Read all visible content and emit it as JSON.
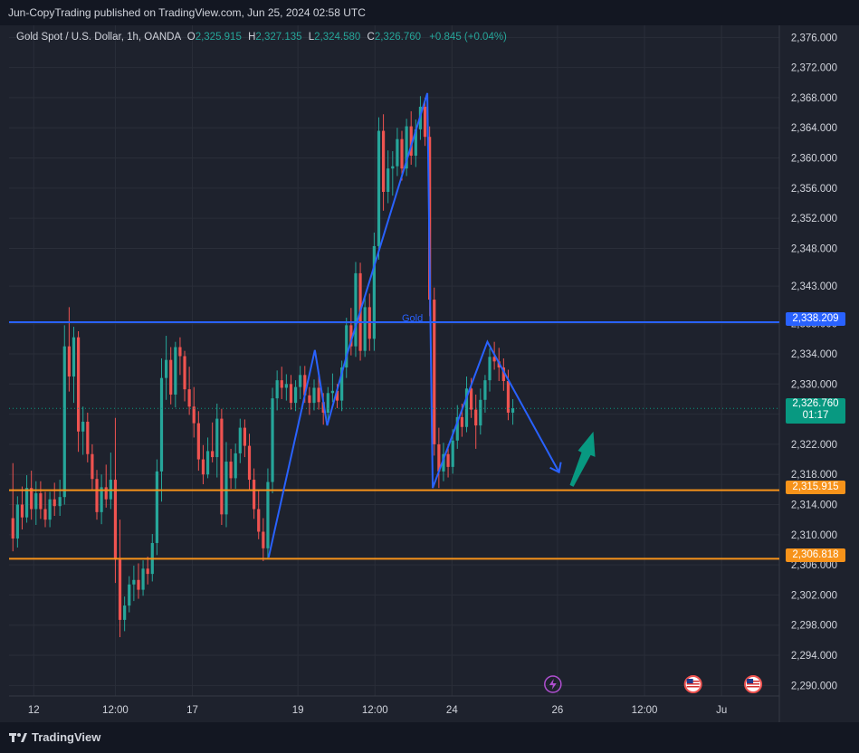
{
  "header": {
    "published_line": "Jun-CopyTrading published on TradingView.com, Jun 25, 2024 02:58 UTC"
  },
  "legend": {
    "symbol": "Gold Spot / U.S. Dollar, 1h, OANDA",
    "o_label": "O",
    "o_value": "2,325.915",
    "h_label": "H",
    "h_value": "2,327.135",
    "l_label": "L",
    "l_value": "2,324.580",
    "c_label": "C",
    "c_value": "2,326.760",
    "change": "+0.845 (+0.04%)"
  },
  "price_tags": {
    "blue_line": "2,338.209",
    "current_price": "2,326.760",
    "countdown": "01:17",
    "orange_upper": "2,315.915",
    "orange_lower": "2,306.818"
  },
  "drawing_label": "Gold",
  "footer": {
    "brand": "TradingView"
  },
  "colors": {
    "background": "#1e222d",
    "up_candle": "#26a69a",
    "down_candle": "#ef5350",
    "blue_line": "#2962ff",
    "orange_line": "#f7931a",
    "projection": "#2962ff",
    "green_arrow": "#089981"
  },
  "icons": [
    "lightning-event-icon",
    "us-flag-event-icon",
    "us-flag-event-icon",
    "tradingview-logo-icon"
  ],
  "chart_data": {
    "type": "candlestick",
    "instrument": "Gold Spot / U.S. Dollar",
    "timeframe": "1h",
    "y_axis_ticks": [
      "2,376.000",
      "2,372.000",
      "2,368.000",
      "2,364.000",
      "2,360.000",
      "2,356.000",
      "2,352.000",
      "2,348.000",
      "2,343.000",
      "2,338.000",
      "2,334.000",
      "2,330.000",
      "2,326.000",
      "2,322.000",
      "2,318.000",
      "2,314.000",
      "2,310.000",
      "2,306.000",
      "2,302.000",
      "2,298.000",
      "2,294.000",
      "2,290.000"
    ],
    "y_tick_values": [
      2376,
      2372,
      2368,
      2364,
      2360,
      2356,
      2352,
      2348,
      2343,
      2338,
      2334,
      2330,
      2326,
      2322,
      2318,
      2314,
      2310,
      2306,
      2302,
      2298,
      2294,
      2290
    ],
    "x_axis_ticks": [
      "12",
      "12:00",
      "17",
      "19",
      "12:00",
      "24",
      "26",
      "12:00",
      "Ju"
    ],
    "x_tick_positions": [
      0.032,
      0.138,
      0.238,
      0.375,
      0.475,
      0.575,
      0.712,
      0.825,
      0.925
    ],
    "ylim": [
      2288.6,
      2377.6
    ],
    "horizontal_levels": [
      {
        "price": 2338.209,
        "color": "#2962ff"
      },
      {
        "price": 2315.915,
        "color": "#f7931a"
      },
      {
        "price": 2306.818,
        "color": "#f7931a"
      }
    ],
    "current_price": 2326.76,
    "path_points": [
      {
        "t": 0.337,
        "price": 2307.0
      },
      {
        "t": 0.397,
        "price": 2334.5
      },
      {
        "t": 0.413,
        "price": 2324.5
      },
      {
        "t": 0.439,
        "price": 2334.0
      },
      {
        "t": 0.543,
        "price": 2368.6
      },
      {
        "t": 0.55,
        "price": 2316.2
      },
      {
        "t": 0.621,
        "price": 2335.6
      },
      {
        "t": 0.714,
        "price": 2318.3
      }
    ],
    "candles": [
      {
        "t": 0.005,
        "o": 2312.2,
        "h": 2319.5,
        "l": 2307.8,
        "c": 2309.5
      },
      {
        "t": 0.011,
        "o": 2309.5,
        "h": 2315.1,
        "l": 2308.3,
        "c": 2314.0
      },
      {
        "t": 0.017,
        "o": 2314.0,
        "h": 2316.4,
        "l": 2310.7,
        "c": 2312.3
      },
      {
        "t": 0.023,
        "o": 2312.3,
        "h": 2317.9,
        "l": 2311.6,
        "c": 2316.2
      },
      {
        "t": 0.029,
        "o": 2316.2,
        "h": 2318.5,
        "l": 2312.0,
        "c": 2313.4
      },
      {
        "t": 0.035,
        "o": 2313.4,
        "h": 2317.1,
        "l": 2311.3,
        "c": 2315.5
      },
      {
        "t": 0.041,
        "o": 2315.5,
        "h": 2317.1,
        "l": 2312.1,
        "c": 2313.4
      },
      {
        "t": 0.047,
        "o": 2313.4,
        "h": 2315.7,
        "l": 2311.0,
        "c": 2312.0
      },
      {
        "t": 0.053,
        "o": 2312.0,
        "h": 2315.7,
        "l": 2311.0,
        "c": 2314.7
      },
      {
        "t": 0.059,
        "o": 2314.7,
        "h": 2316.9,
        "l": 2312.5,
        "c": 2313.8
      },
      {
        "t": 0.066,
        "o": 2313.8,
        "h": 2317.3,
        "l": 2312.5,
        "c": 2315.0
      },
      {
        "t": 0.072,
        "o": 2315.0,
        "h": 2337.8,
        "l": 2314.0,
        "c": 2335.0
      },
      {
        "t": 0.078,
        "o": 2335.0,
        "h": 2340.2,
        "l": 2329.0,
        "c": 2331.0
      },
      {
        "t": 0.084,
        "o": 2331.0,
        "h": 2337.6,
        "l": 2327.5,
        "c": 2336.2
      },
      {
        "t": 0.09,
        "o": 2336.2,
        "h": 2337.0,
        "l": 2321.0,
        "c": 2323.7
      },
      {
        "t": 0.096,
        "o": 2323.7,
        "h": 2327.0,
        "l": 2320.6,
        "c": 2325.0
      },
      {
        "t": 0.102,
        "o": 2325.0,
        "h": 2326.2,
        "l": 2319.6,
        "c": 2320.7
      },
      {
        "t": 0.108,
        "o": 2320.7,
        "h": 2322.0,
        "l": 2316.0,
        "c": 2317.4
      },
      {
        "t": 0.114,
        "o": 2317.4,
        "h": 2318.6,
        "l": 2312.0,
        "c": 2313.0
      },
      {
        "t": 0.12,
        "o": 2313.0,
        "h": 2318.0,
        "l": 2311.4,
        "c": 2316.3
      },
      {
        "t": 0.126,
        "o": 2316.3,
        "h": 2319.3,
        "l": 2313.6,
        "c": 2314.7
      },
      {
        "t": 0.132,
        "o": 2314.7,
        "h": 2320.9,
        "l": 2313.4,
        "c": 2317.3
      },
      {
        "t": 0.138,
        "o": 2317.3,
        "h": 2325.5,
        "l": 2303.6,
        "c": 2306.7
      },
      {
        "t": 0.144,
        "o": 2306.7,
        "h": 2312.0,
        "l": 2296.4,
        "c": 2298.7
      },
      {
        "t": 0.15,
        "o": 2298.7,
        "h": 2301.8,
        "l": 2297.2,
        "c": 2300.6
      },
      {
        "t": 0.156,
        "o": 2300.6,
        "h": 2304.5,
        "l": 2299.7,
        "c": 2303.4
      },
      {
        "t": 0.162,
        "o": 2303.4,
        "h": 2305.9,
        "l": 2301.2,
        "c": 2304.0
      },
      {
        "t": 0.168,
        "o": 2304.0,
        "h": 2306.2,
        "l": 2301.5,
        "c": 2302.7
      },
      {
        "t": 0.174,
        "o": 2302.7,
        "h": 2306.6,
        "l": 2301.9,
        "c": 2305.5
      },
      {
        "t": 0.18,
        "o": 2305.5,
        "h": 2307.1,
        "l": 2303.4,
        "c": 2304.8
      },
      {
        "t": 0.186,
        "o": 2304.8,
        "h": 2310.1,
        "l": 2303.8,
        "c": 2308.9
      },
      {
        "t": 0.192,
        "o": 2308.9,
        "h": 2320.0,
        "l": 2307.3,
        "c": 2318.4
      },
      {
        "t": 0.198,
        "o": 2318.4,
        "h": 2333.4,
        "l": 2314.4,
        "c": 2330.8
      },
      {
        "t": 0.204,
        "o": 2330.8,
        "h": 2336.4,
        "l": 2327.9,
        "c": 2333.2
      },
      {
        "t": 0.21,
        "o": 2333.2,
        "h": 2334.9,
        "l": 2327.3,
        "c": 2328.6
      },
      {
        "t": 0.216,
        "o": 2328.6,
        "h": 2335.6,
        "l": 2326.9,
        "c": 2334.9
      },
      {
        "t": 0.222,
        "o": 2334.9,
        "h": 2336.2,
        "l": 2331.2,
        "c": 2333.7
      },
      {
        "t": 0.228,
        "o": 2333.7,
        "h": 2334.4,
        "l": 2327.7,
        "c": 2329.3
      },
      {
        "t": 0.234,
        "o": 2329.3,
        "h": 2332.3,
        "l": 2325.9,
        "c": 2327.0
      },
      {
        "t": 0.24,
        "o": 2327.0,
        "h": 2329.6,
        "l": 2322.9,
        "c": 2324.8
      },
      {
        "t": 0.246,
        "o": 2324.8,
        "h": 2326.4,
        "l": 2318.5,
        "c": 2320.0
      },
      {
        "t": 0.252,
        "o": 2320.0,
        "h": 2321.9,
        "l": 2316.7,
        "c": 2318.0
      },
      {
        "t": 0.258,
        "o": 2318.0,
        "h": 2322.9,
        "l": 2317.5,
        "c": 2321.1
      },
      {
        "t": 0.264,
        "o": 2321.1,
        "h": 2324.9,
        "l": 2319.6,
        "c": 2320.3
      },
      {
        "t": 0.27,
        "o": 2320.3,
        "h": 2327.4,
        "l": 2317.6,
        "c": 2325.4
      },
      {
        "t": 0.276,
        "o": 2325.4,
        "h": 2326.7,
        "l": 2311.3,
        "c": 2312.7
      },
      {
        "t": 0.282,
        "o": 2312.7,
        "h": 2322.3,
        "l": 2311.0,
        "c": 2319.7
      },
      {
        "t": 0.288,
        "o": 2319.7,
        "h": 2321.4,
        "l": 2316.1,
        "c": 2317.5
      },
      {
        "t": 0.294,
        "o": 2317.5,
        "h": 2322.1,
        "l": 2316.1,
        "c": 2320.8
      },
      {
        "t": 0.3,
        "o": 2320.8,
        "h": 2325.4,
        "l": 2319.5,
        "c": 2324.2
      },
      {
        "t": 0.306,
        "o": 2324.2,
        "h": 2325.3,
        "l": 2320.3,
        "c": 2321.8
      },
      {
        "t": 0.312,
        "o": 2321.8,
        "h": 2323.4,
        "l": 2316.0,
        "c": 2317.3
      },
      {
        "t": 0.318,
        "o": 2317.3,
        "h": 2318.8,
        "l": 2312.1,
        "c": 2313.4
      },
      {
        "t": 0.324,
        "o": 2313.4,
        "h": 2315.8,
        "l": 2309.4,
        "c": 2310.4
      },
      {
        "t": 0.33,
        "o": 2310.4,
        "h": 2312.2,
        "l": 2306.5,
        "c": 2308.2
      },
      {
        "t": 0.336,
        "o": 2308.2,
        "h": 2318.8,
        "l": 2306.9,
        "c": 2317.0
      },
      {
        "t": 0.342,
        "o": 2317.0,
        "h": 2329.5,
        "l": 2315.5,
        "c": 2328.1
      },
      {
        "t": 0.348,
        "o": 2328.1,
        "h": 2331.8,
        "l": 2326.5,
        "c": 2330.5
      },
      {
        "t": 0.354,
        "o": 2330.5,
        "h": 2332.3,
        "l": 2328.0,
        "c": 2329.5
      },
      {
        "t": 0.36,
        "o": 2329.5,
        "h": 2331.3,
        "l": 2327.8,
        "c": 2330.0
      },
      {
        "t": 0.366,
        "o": 2330.0,
        "h": 2331.2,
        "l": 2326.6,
        "c": 2327.5
      },
      {
        "t": 0.372,
        "o": 2327.5,
        "h": 2330.5,
        "l": 2326.4,
        "c": 2329.6
      },
      {
        "t": 0.378,
        "o": 2329.6,
        "h": 2332.4,
        "l": 2328.0,
        "c": 2331.2
      },
      {
        "t": 0.384,
        "o": 2331.2,
        "h": 2332.4,
        "l": 2327.5,
        "c": 2328.5
      },
      {
        "t": 0.39,
        "o": 2328.5,
        "h": 2329.6,
        "l": 2325.9,
        "c": 2327.5
      },
      {
        "t": 0.396,
        "o": 2327.5,
        "h": 2330.6,
        "l": 2326.5,
        "c": 2329.5
      },
      {
        "t": 0.402,
        "o": 2329.5,
        "h": 2331.5,
        "l": 2326.6,
        "c": 2327.6
      },
      {
        "t": 0.408,
        "o": 2327.6,
        "h": 2328.8,
        "l": 2324.6,
        "c": 2326.2
      },
      {
        "t": 0.414,
        "o": 2326.2,
        "h": 2329.6,
        "l": 2325.2,
        "c": 2328.8
      },
      {
        "t": 0.42,
        "o": 2328.8,
        "h": 2331.4,
        "l": 2327.6,
        "c": 2329.1
      },
      {
        "t": 0.426,
        "o": 2329.1,
        "h": 2330.0,
        "l": 2326.8,
        "c": 2327.8
      },
      {
        "t": 0.432,
        "o": 2327.8,
        "h": 2333.1,
        "l": 2326.4,
        "c": 2332.2
      },
      {
        "t": 0.438,
        "o": 2332.2,
        "h": 2338.8,
        "l": 2330.8,
        "c": 2337.8
      },
      {
        "t": 0.444,
        "o": 2337.8,
        "h": 2340.1,
        "l": 2333.8,
        "c": 2335.0
      },
      {
        "t": 0.45,
        "o": 2335.0,
        "h": 2346.2,
        "l": 2333.6,
        "c": 2344.7
      },
      {
        "t": 0.456,
        "o": 2344.7,
        "h": 2346.1,
        "l": 2333.1,
        "c": 2334.4
      },
      {
        "t": 0.462,
        "o": 2334.4,
        "h": 2341.5,
        "l": 2333.6,
        "c": 2340.2
      },
      {
        "t": 0.468,
        "o": 2340.2,
        "h": 2342.0,
        "l": 2334.4,
        "c": 2336.0
      },
      {
        "t": 0.474,
        "o": 2336.0,
        "h": 2350.1,
        "l": 2334.4,
        "c": 2348.3
      },
      {
        "t": 0.48,
        "o": 2348.3,
        "h": 2365.4,
        "l": 2346.5,
        "c": 2363.6
      },
      {
        "t": 0.486,
        "o": 2363.6,
        "h": 2365.8,
        "l": 2353.0,
        "c": 2355.5
      },
      {
        "t": 0.492,
        "o": 2355.5,
        "h": 2361.0,
        "l": 2354.0,
        "c": 2358.6
      },
      {
        "t": 0.498,
        "o": 2358.6,
        "h": 2360.9,
        "l": 2355.0,
        "c": 2358.9
      },
      {
        "t": 0.504,
        "o": 2358.9,
        "h": 2364.0,
        "l": 2357.6,
        "c": 2362.5
      },
      {
        "t": 0.51,
        "o": 2362.5,
        "h": 2363.6,
        "l": 2357.0,
        "c": 2358.6
      },
      {
        "t": 0.516,
        "o": 2358.6,
        "h": 2365.2,
        "l": 2357.6,
        "c": 2364.2
      },
      {
        "t": 0.522,
        "o": 2364.2,
        "h": 2366.2,
        "l": 2359.1,
        "c": 2360.3
      },
      {
        "t": 0.528,
        "o": 2360.3,
        "h": 2365.1,
        "l": 2358.8,
        "c": 2363.8
      },
      {
        "t": 0.534,
        "o": 2363.8,
        "h": 2368.2,
        "l": 2362.4,
        "c": 2366.8
      },
      {
        "t": 0.54,
        "o": 2366.8,
        "h": 2368.0,
        "l": 2361.6,
        "c": 2362.8
      },
      {
        "t": 0.546,
        "o": 2362.8,
        "h": 2364.2,
        "l": 2339.0,
        "c": 2341.2
      },
      {
        "t": 0.552,
        "o": 2341.2,
        "h": 2342.8,
        "l": 2320.5,
        "c": 2322.0
      },
      {
        "t": 0.558,
        "o": 2322.0,
        "h": 2324.2,
        "l": 2316.2,
        "c": 2318.4
      },
      {
        "t": 0.564,
        "o": 2318.4,
        "h": 2322.2,
        "l": 2317.1,
        "c": 2320.7
      },
      {
        "t": 0.57,
        "o": 2320.7,
        "h": 2322.0,
        "l": 2317.6,
        "c": 2319.0
      },
      {
        "t": 0.576,
        "o": 2319.0,
        "h": 2324.0,
        "l": 2318.1,
        "c": 2322.5
      },
      {
        "t": 0.582,
        "o": 2322.5,
        "h": 2327.2,
        "l": 2321.4,
        "c": 2325.6
      },
      {
        "t": 0.588,
        "o": 2325.6,
        "h": 2327.4,
        "l": 2323.0,
        "c": 2324.3
      },
      {
        "t": 0.594,
        "o": 2324.3,
        "h": 2331.0,
        "l": 2323.6,
        "c": 2329.4
      },
      {
        "t": 0.6,
        "o": 2329.4,
        "h": 2330.8,
        "l": 2325.5,
        "c": 2326.6
      },
      {
        "t": 0.606,
        "o": 2326.6,
        "h": 2328.6,
        "l": 2321.4,
        "c": 2324.5
      },
      {
        "t": 0.612,
        "o": 2324.5,
        "h": 2329.4,
        "l": 2323.3,
        "c": 2327.9
      },
      {
        "t": 0.618,
        "o": 2327.9,
        "h": 2331.2,
        "l": 2326.2,
        "c": 2330.5
      },
      {
        "t": 0.624,
        "o": 2330.5,
        "h": 2334.7,
        "l": 2329.0,
        "c": 2333.6
      },
      {
        "t": 0.63,
        "o": 2333.6,
        "h": 2335.6,
        "l": 2331.9,
        "c": 2333.0
      },
      {
        "t": 0.636,
        "o": 2333.0,
        "h": 2334.8,
        "l": 2330.4,
        "c": 2332.2
      },
      {
        "t": 0.642,
        "o": 2332.2,
        "h": 2333.4,
        "l": 2329.1,
        "c": 2330.4
      },
      {
        "t": 0.648,
        "o": 2330.4,
        "h": 2331.9,
        "l": 2325.2,
        "c": 2326.2
      },
      {
        "t": 0.654,
        "o": 2326.2,
        "h": 2328.0,
        "l": 2324.6,
        "c": 2326.8
      }
    ]
  }
}
